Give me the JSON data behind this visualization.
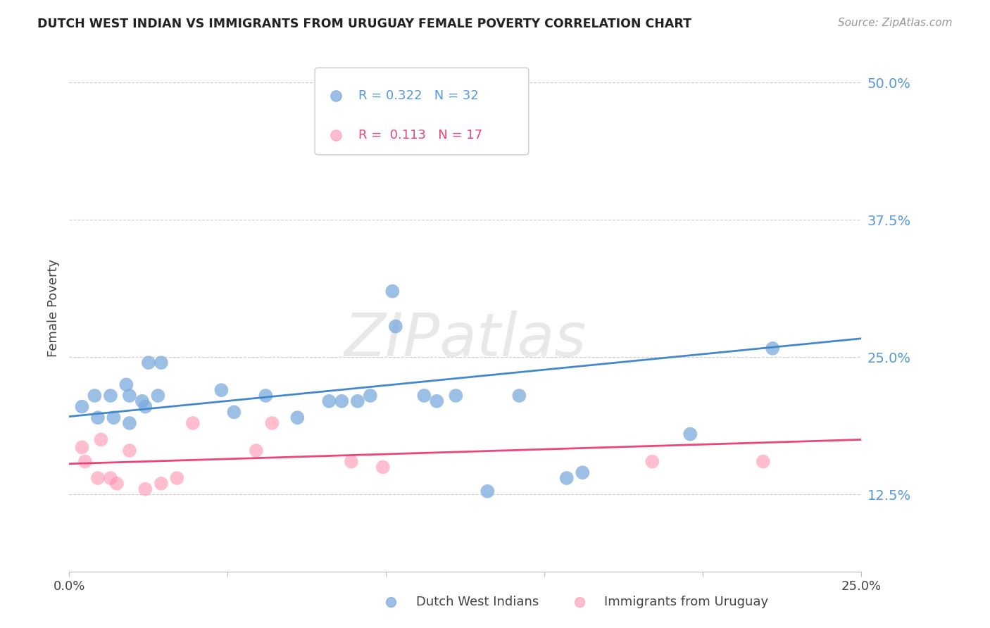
{
  "title": "DUTCH WEST INDIAN VS IMMIGRANTS FROM URUGUAY FEMALE POVERTY CORRELATION CHART",
  "source": "Source: ZipAtlas.com",
  "ylabel": "Female Poverty",
  "ytick_labels": [
    "12.5%",
    "25.0%",
    "37.5%",
    "50.0%"
  ],
  "ytick_values": [
    0.125,
    0.25,
    0.375,
    0.5
  ],
  "xlim": [
    0.0,
    0.25
  ],
  "ylim": [
    0.055,
    0.535
  ],
  "color_blue": "#7AAADD",
  "color_pink": "#FF88AA",
  "color_blue_line": "#4488CC",
  "color_pink_line": "#EE4477",
  "color_ytick": "#5599DD",
  "watermark": "ZIPatlas",
  "legend_line1_r": "R = 0.322",
  "legend_line1_n": "N = 32",
  "legend_line2_r": "R =  0.113",
  "legend_line2_n": "N = 17",
  "label_blue": "Dutch West Indians",
  "label_pink": "Immigrants from Uruguay",
  "dutch_west_x": [
    0.004,
    0.008,
    0.009,
    0.013,
    0.014,
    0.018,
    0.019,
    0.019,
    0.023,
    0.024,
    0.025,
    0.028,
    0.029,
    0.048,
    0.052,
    0.062,
    0.072,
    0.082,
    0.086,
    0.091,
    0.095,
    0.102,
    0.103,
    0.112,
    0.116,
    0.122,
    0.132,
    0.142,
    0.157,
    0.162,
    0.196,
    0.222
  ],
  "dutch_west_y": [
    0.205,
    0.215,
    0.195,
    0.215,
    0.195,
    0.225,
    0.215,
    0.19,
    0.21,
    0.205,
    0.245,
    0.215,
    0.245,
    0.22,
    0.2,
    0.215,
    0.195,
    0.21,
    0.21,
    0.21,
    0.215,
    0.31,
    0.278,
    0.215,
    0.21,
    0.215,
    0.128,
    0.215,
    0.14,
    0.145,
    0.18,
    0.258
  ],
  "uruguay_x": [
    0.004,
    0.005,
    0.009,
    0.01,
    0.013,
    0.015,
    0.019,
    0.024,
    0.029,
    0.034,
    0.039,
    0.059,
    0.064,
    0.089,
    0.099,
    0.184,
    0.219
  ],
  "uruguay_y": [
    0.168,
    0.155,
    0.14,
    0.175,
    0.14,
    0.135,
    0.165,
    0.13,
    0.135,
    0.14,
    0.19,
    0.165,
    0.19,
    0.155,
    0.15,
    0.155,
    0.155
  ],
  "blue_line_x": [
    0.0,
    0.25
  ],
  "blue_line_y": [
    0.196,
    0.267
  ],
  "pink_line_x": [
    0.0,
    0.25
  ],
  "pink_line_y": [
    0.153,
    0.175
  ]
}
